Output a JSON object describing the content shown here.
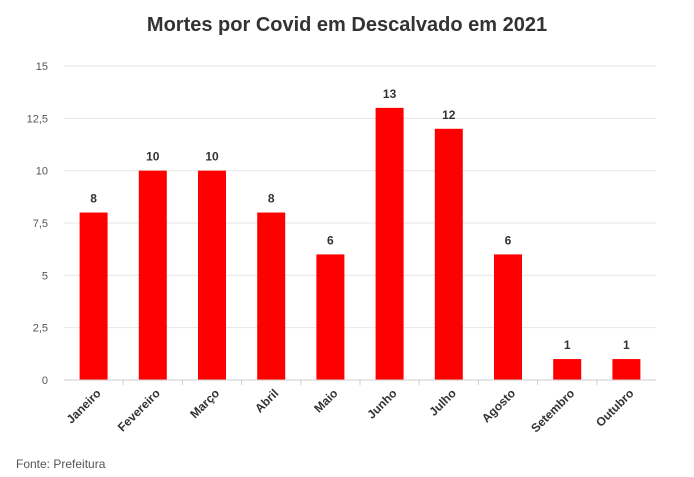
{
  "chart_data": {
    "type": "bar",
    "title": "Mortes por Covid em Descalvado em 2021",
    "categories": [
      "Janeiro",
      "Fevereiro",
      "Março",
      "Abril",
      "Maio",
      "Junho",
      "Julho",
      "Agosto",
      "Setembro",
      "Outubro"
    ],
    "values": [
      8,
      10,
      10,
      8,
      6,
      13,
      12,
      6,
      1,
      1
    ],
    "value_labels": [
      "8",
      "10",
      "10",
      "8",
      "6",
      "13",
      "12",
      "6",
      "1",
      "1"
    ],
    "ylim": [
      0,
      15
    ],
    "yticks": [
      0,
      2.5,
      5,
      7.5,
      10,
      12.5,
      15
    ],
    "ytick_labels": [
      "0",
      "2,5",
      "5",
      "7,5",
      "10",
      "12,5",
      "15"
    ],
    "xlabel": "",
    "ylabel": "",
    "grid": true,
    "bar_color": "#ff0000",
    "grid_color": "#e6e6e6"
  },
  "source": "Fonte: Prefeitura"
}
